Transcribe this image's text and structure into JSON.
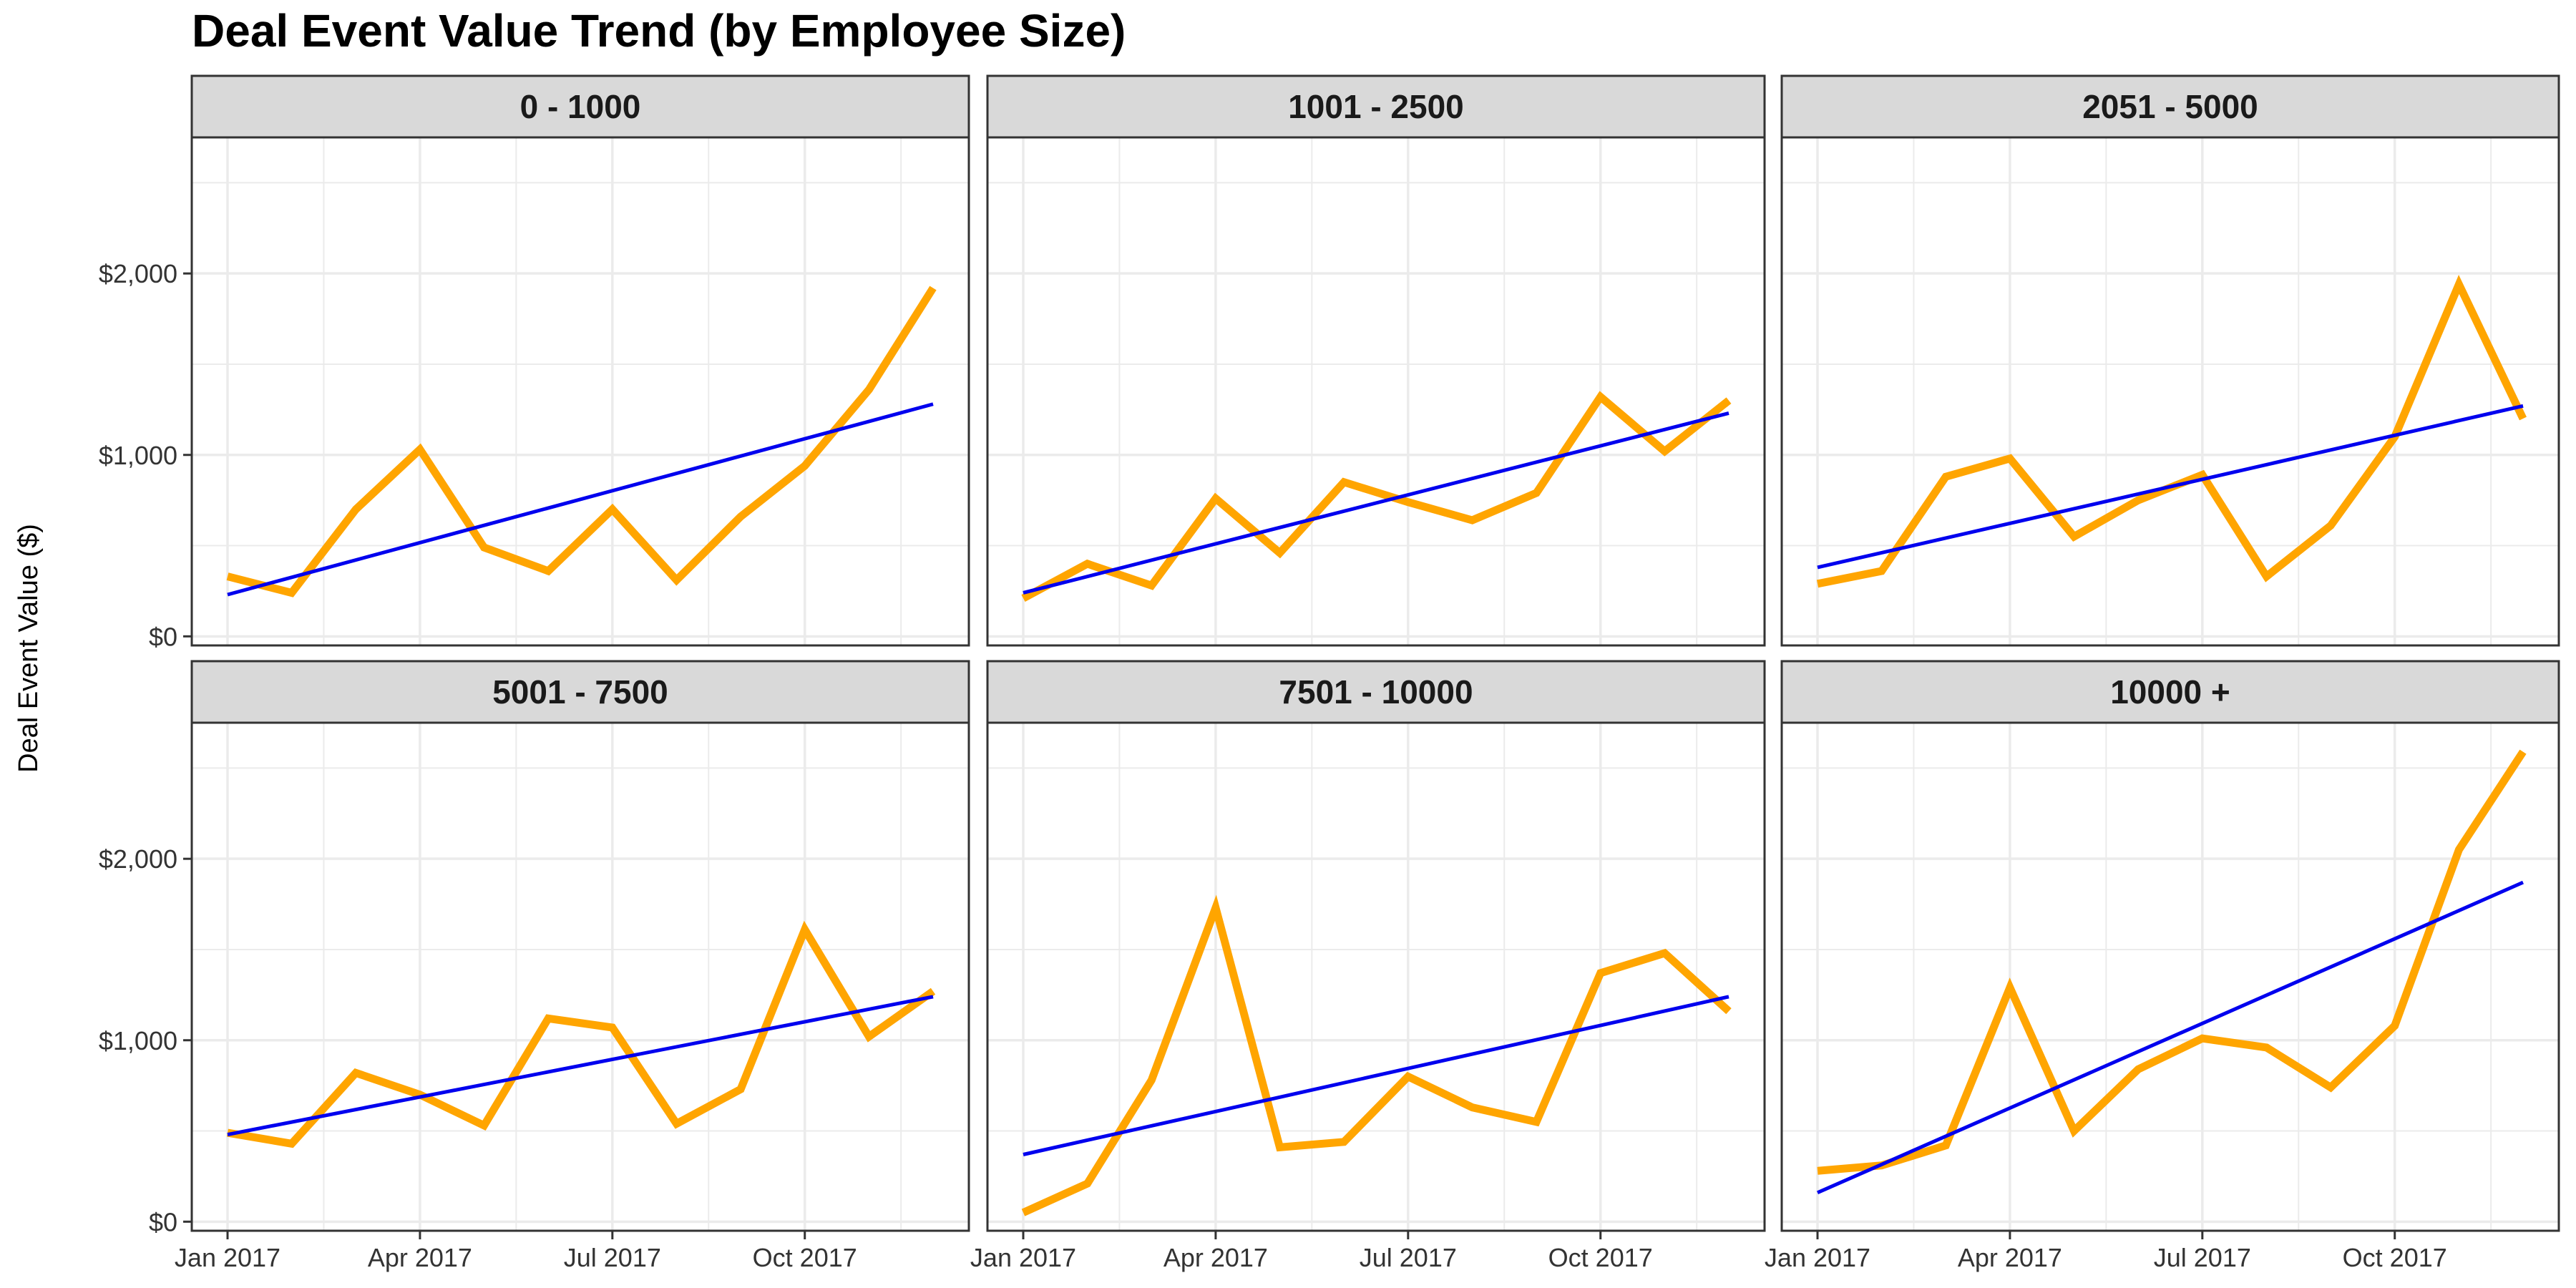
{
  "chart_data": {
    "type": "line",
    "title": "Deal Event Value Trend (by Employee Size)",
    "xlabel": "",
    "ylabel": "Deal Event Value ($)",
    "x": [
      "2017-01",
      "2017-02",
      "2017-03",
      "2017-04",
      "2017-05",
      "2017-06",
      "2017-07",
      "2017-08",
      "2017-09",
      "2017-10",
      "2017-11",
      "2017-12"
    ],
    "x_ticks": [
      {
        "x": "2017-01",
        "label": "Jan 2017"
      },
      {
        "x": "2017-04",
        "label": "Apr 2017"
      },
      {
        "x": "2017-07",
        "label": "Jul 2017"
      },
      {
        "x": "2017-10",
        "label": "Oct 2017"
      }
    ],
    "y_ticks": [
      {
        "value": 0,
        "label": "$0"
      },
      {
        "value": 1000,
        "label": "$1,000"
      },
      {
        "value": 2000,
        "label": "$2,000"
      }
    ],
    "ylim": [
      -50,
      2750
    ],
    "grid": true,
    "colors": {
      "series": "#FFA500",
      "trend": "#0000EE",
      "strip": "#D9D9D9",
      "grid": "#EBEBEB",
      "border": "#333333"
    },
    "panels": [
      {
        "title": "0 - 1000",
        "values": [
          330,
          240,
          700,
          1030,
          490,
          360,
          700,
          310,
          660,
          940,
          1360,
          1920
        ],
        "trend": [
          230,
          1280
        ]
      },
      {
        "title": "1001 - 2500",
        "values": [
          210,
          400,
          280,
          760,
          460,
          850,
          740,
          640,
          790,
          1320,
          1020,
          1300
        ],
        "trend": [
          240,
          1230
        ]
      },
      {
        "title": "2051 - 5000",
        "values": [
          290,
          360,
          880,
          980,
          550,
          750,
          890,
          330,
          610,
          1100,
          1940,
          1200
        ],
        "trend": [
          380,
          1270
        ]
      },
      {
        "title": "5001 - 7500",
        "values": [
          490,
          430,
          820,
          700,
          530,
          1120,
          1070,
          540,
          730,
          1610,
          1020,
          1270
        ],
        "trend": [
          480,
          1240
        ]
      },
      {
        "title": "7501 - 10000",
        "values": [
          50,
          210,
          780,
          1730,
          410,
          440,
          800,
          630,
          550,
          1370,
          1480,
          1160
        ],
        "trend": [
          370,
          1240
        ]
      },
      {
        "title": "10000 +",
        "values": [
          280,
          310,
          420,
          1290,
          500,
          840,
          1010,
          960,
          740,
          1080,
          2050,
          2590
        ],
        "trend": [
          160,
          1870
        ]
      }
    ]
  }
}
